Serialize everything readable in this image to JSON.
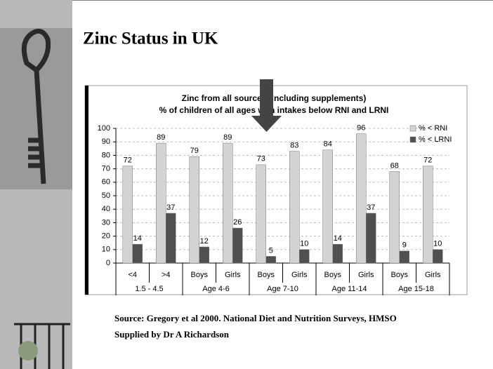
{
  "slide_title": "Zinc Status in UK",
  "source": [
    "Source: Gregory et al 2000. National Diet and Nutrition Surveys, HMSO",
    "Supplied by Dr A Richardson"
  ],
  "chart_data": {
    "type": "bar",
    "title": "Zinc from all sources (including supplements)",
    "subtitle": "% of children of all ages with intakes below RNI and LRNI",
    "categories": [
      "<4",
      ">4",
      "Boys",
      "Girls",
      "Boys",
      "Girls",
      "Boys",
      "Girls",
      "Boys",
      "Girls"
    ],
    "groups": [
      "1.5 - 4.5",
      "Age 4-6",
      "Age 7-10",
      "Age 11-14",
      "Age 15-18"
    ],
    "series": [
      {
        "name": "% < RNI",
        "color": "#d3d3d3",
        "values": [
          72,
          89,
          79,
          89,
          73,
          83,
          84,
          96,
          68,
          72
        ]
      },
      {
        "name": "% < LRNI",
        "color": "#505050",
        "values": [
          14,
          37,
          12,
          26,
          5,
          10,
          14,
          37,
          9,
          10
        ]
      }
    ],
    "ylim": [
      0,
      100
    ],
    "yticks": [
      0,
      10,
      20,
      30,
      40,
      50,
      60,
      70,
      80,
      90,
      100
    ],
    "grid": true,
    "legend": "upper right"
  }
}
